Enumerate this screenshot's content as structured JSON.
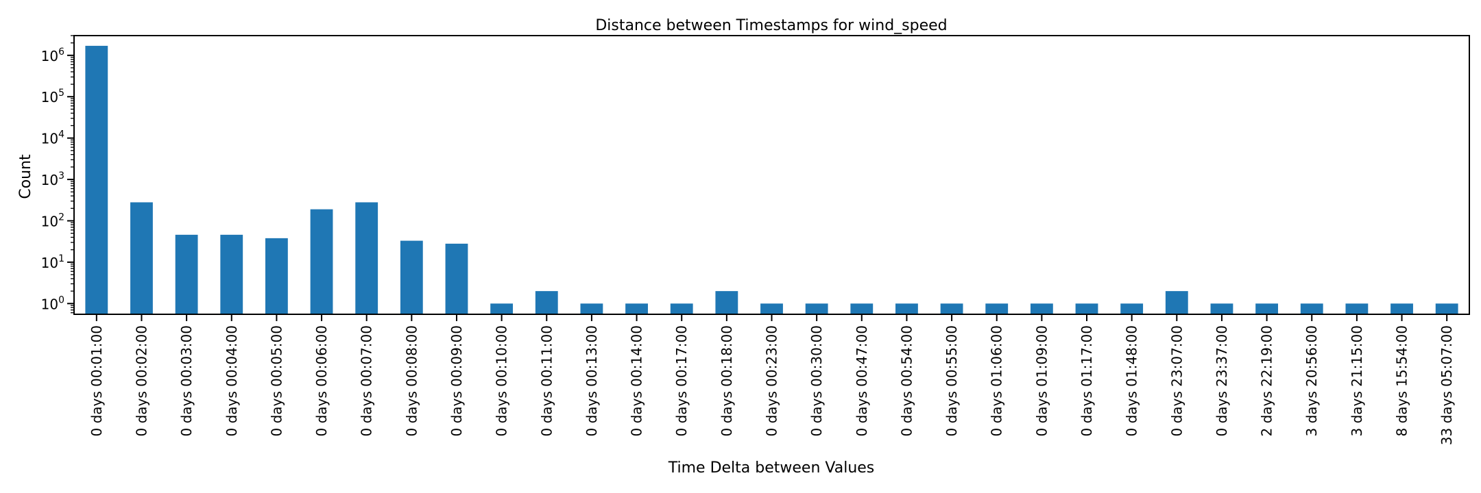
{
  "chart_data": {
    "type": "bar",
    "title": "Distance between Timestamps for wind_speed",
    "xlabel": "Time Delta between Values",
    "ylabel": "Count",
    "yscale": "log",
    "ylim": [
      0.55,
      3000000
    ],
    "yticks": [
      {
        "value": 1,
        "base": "10",
        "exp": "0"
      },
      {
        "value": 10,
        "base": "10",
        "exp": "1"
      },
      {
        "value": 100,
        "base": "10",
        "exp": "2"
      },
      {
        "value": 1000,
        "base": "10",
        "exp": "3"
      },
      {
        "value": 10000,
        "base": "10",
        "exp": "4"
      },
      {
        "value": 100000,
        "base": "10",
        "exp": "5"
      },
      {
        "value": 1000000,
        "base": "10",
        "exp": "6"
      }
    ],
    "grid": false,
    "bar_color": "#1f77b4",
    "categories": [
      "0 days 00:01:00",
      "0 days 00:02:00",
      "0 days 00:03:00",
      "0 days 00:04:00",
      "0 days 00:05:00",
      "0 days 00:06:00",
      "0 days 00:07:00",
      "0 days 00:08:00",
      "0 days 00:09:00",
      "0 days 00:10:00",
      "0 days 00:11:00",
      "0 days 00:13:00",
      "0 days 00:14:00",
      "0 days 00:17:00",
      "0 days 00:18:00",
      "0 days 00:23:00",
      "0 days 00:30:00",
      "0 days 00:47:00",
      "0 days 00:54:00",
      "0 days 00:55:00",
      "0 days 01:06:00",
      "0 days 01:09:00",
      "0 days 01:17:00",
      "0 days 01:48:00",
      "0 days 23:07:00",
      "0 days 23:37:00",
      "2 days 22:19:00",
      "3 days 20:56:00",
      "3 days 21:15:00",
      "8 days 15:54:00",
      "33 days 05:07:00"
    ],
    "values": [
      1700000,
      280,
      46,
      46,
      38,
      190,
      280,
      33,
      28,
      1,
      2,
      1,
      1,
      1,
      2,
      1,
      1,
      1,
      1,
      1,
      1,
      1,
      1,
      1,
      2,
      1,
      1,
      1,
      1,
      1,
      1
    ]
  }
}
